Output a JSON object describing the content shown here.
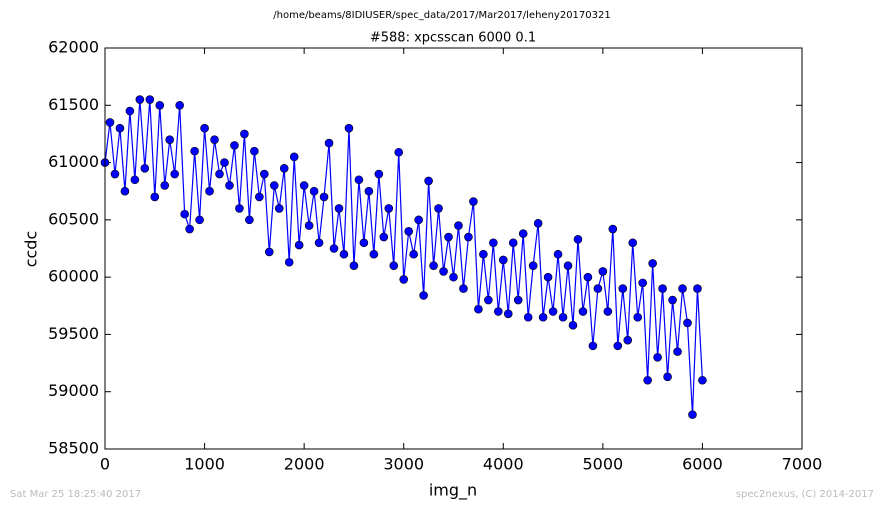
{
  "chart_data": {
    "type": "line",
    "suptitle": "/home/beams/8IDIUSER/spec_data/2017/Mar2017/leheny20170321",
    "title": "#588: xpcsscan 6000 0.1",
    "xlabel": "img_n",
    "ylabel": "ccdc",
    "xlim": [
      0,
      7000
    ],
    "xticks": [
      0,
      1000,
      2000,
      3000,
      4000,
      5000,
      6000,
      7000
    ],
    "ylim": [
      58500,
      62000
    ],
    "yticks": [
      58500,
      59000,
      59500,
      60000,
      60500,
      61000,
      61500,
      62000
    ],
    "x": [
      0,
      50,
      100,
      150,
      200,
      250,
      300,
      350,
      400,
      450,
      500,
      550,
      600,
      650,
      700,
      750,
      800,
      850,
      900,
      950,
      1000,
      1050,
      1100,
      1150,
      1200,
      1250,
      1300,
      1350,
      1400,
      1450,
      1500,
      1550,
      1600,
      1650,
      1700,
      1750,
      1800,
      1850,
      1900,
      1950,
      2000,
      2050,
      2100,
      2150,
      2200,
      2250,
      2300,
      2350,
      2400,
      2450,
      2500,
      2550,
      2600,
      2650,
      2700,
      2750,
      2800,
      2850,
      2900,
      2950,
      3000,
      3050,
      3100,
      3150,
      3200,
      3250,
      3300,
      3350,
      3400,
      3450,
      3500,
      3550,
      3600,
      3650,
      3700,
      3750,
      3800,
      3850,
      3900,
      3950,
      4000,
      4050,
      4100,
      4150,
      4200,
      4250,
      4300,
      4350,
      4400,
      4450,
      4500,
      4550,
      4600,
      4650,
      4700,
      4750,
      4800,
      4850,
      4900,
      4950,
      5000,
      5050,
      5100,
      5150,
      5200,
      5250,
      5300,
      5350,
      5400,
      5450,
      5500,
      5550,
      5600,
      5650,
      5700,
      5750,
      5800,
      5850,
      5900,
      5950,
      6000
    ],
    "series": [
      {
        "color": "#0000ff",
        "values": [
          61000,
          61350,
          60900,
          61300,
          60750,
          61450,
          60850,
          61550,
          60950,
          61550,
          60700,
          61500,
          60800,
          61200,
          60900,
          61500,
          60550,
          60420,
          61100,
          60500,
          61300,
          60750,
          61200,
          60900,
          61000,
          60800,
          61150,
          60600,
          61250,
          60500,
          61100,
          60700,
          60900,
          60220,
          60800,
          60600,
          60950,
          60130,
          61050,
          60280,
          60800,
          60450,
          60750,
          60300,
          60700,
          61170,
          60250,
          60600,
          60200,
          61300,
          60100,
          60850,
          60300,
          60750,
          60200,
          60900,
          60350,
          60600,
          60100,
          61090,
          59980,
          60400,
          60200,
          60500,
          59840,
          60840,
          60100,
          60600,
          60050,
          60350,
          60000,
          60450,
          59900,
          60350,
          60660,
          59720,
          60200,
          59800,
          60300,
          59700,
          60150,
          59680,
          60300,
          59800,
          60380,
          59650,
          60100,
          60470,
          59650,
          60000,
          59700,
          60200,
          59650,
          60100,
          59580,
          60330,
          59700,
          60000,
          59400,
          59900,
          60050,
          59700,
          60420,
          59400,
          59900,
          59450,
          60300,
          59650,
          59950,
          59100,
          60120,
          59300,
          59900,
          59130,
          59800,
          59350,
          59900,
          59600,
          58800,
          59900,
          59100
        ]
      }
    ]
  },
  "footer": {
    "left": "Sat Mar 25 18:25:40 2017",
    "right": "spec2nexus, (C) 2014-2017"
  }
}
